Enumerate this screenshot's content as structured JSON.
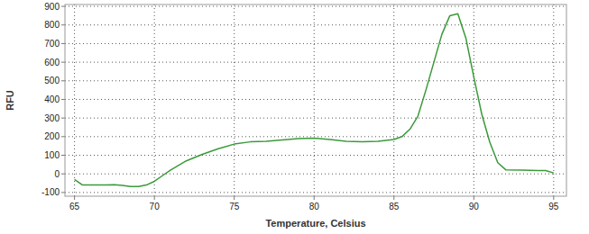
{
  "chart_data": {
    "type": "line",
    "x_label": "Temperature, Celsius",
    "y_label": "RFU",
    "x": [
      65,
      65.5,
      66,
      67,
      67.5,
      68,
      68.5,
      69,
      69.5,
      70,
      70.5,
      71,
      72,
      73,
      74,
      75,
      76,
      77,
      78,
      79,
      80,
      81,
      82,
      83,
      84,
      85,
      85.5,
      86,
      86.5,
      87,
      87.5,
      88,
      88.5,
      89,
      89.5,
      90,
      90.5,
      91,
      91.5,
      92,
      93,
      94,
      94.5,
      95
    ],
    "series": [
      {
        "color": "#3a9a3a",
        "values": [
          -30,
          -60,
          -60,
          -60,
          -58,
          -62,
          -68,
          -68,
          -60,
          -40,
          -10,
          20,
          70,
          105,
          135,
          160,
          172,
          175,
          182,
          190,
          192,
          185,
          175,
          172,
          175,
          185,
          200,
          240,
          310,
          450,
          600,
          750,
          850,
          860,
          730,
          520,
          320,
          170,
          60,
          22,
          20,
          18,
          18,
          5
        ]
      }
    ],
    "xlim": [
      64.4,
      95.8
    ],
    "ylim": [
      -120,
      910
    ],
    "xticks": [
      65,
      70,
      75,
      80,
      85,
      90,
      95
    ],
    "yticks": [
      -100,
      0,
      100,
      200,
      300,
      400,
      500,
      600,
      700,
      800,
      900
    ],
    "grid": true
  }
}
